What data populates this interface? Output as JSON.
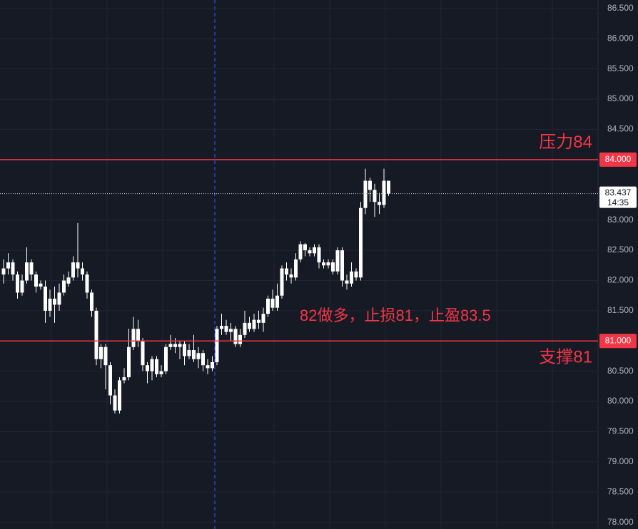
{
  "chart_data": {
    "type": "candlestick",
    "color": "#ffffff",
    "ylim": [
      77.89,
      86.64
    ],
    "yticks": [
      {
        "value": 78,
        "label": "78.000"
      },
      {
        "value": 78.5,
        "label": "78.500"
      },
      {
        "value": 79,
        "label": "79.000"
      },
      {
        "value": 79.5,
        "label": "79.500"
      },
      {
        "value": 80,
        "label": "80.000"
      },
      {
        "value": 80.5,
        "label": "80.500"
      },
      {
        "value": 81.5,
        "label": "81.500"
      },
      {
        "value": 82,
        "label": "82.000"
      },
      {
        "value": 82.5,
        "label": "82.500"
      },
      {
        "value": 83,
        "label": "83.000"
      },
      {
        "value": 84.5,
        "label": "84.500"
      },
      {
        "value": 85,
        "label": "85.000"
      },
      {
        "value": 85.5,
        "label": "85.500"
      },
      {
        "value": 86,
        "label": "86.000"
      },
      {
        "value": 86.5,
        "label": "86.500"
      }
    ],
    "grid": true,
    "open": [
      82.1,
      82.2,
      82.3,
      82.1,
      81.8,
      82.0,
      82.3,
      82.1,
      81.95,
      81.9,
      81.5,
      81.7,
      81.6,
      81.8,
      81.95,
      82.05,
      82.3,
      82.2,
      82.1,
      81.8,
      81.5,
      80.7,
      80.9,
      80.6,
      80.1,
      79.85,
      80.35,
      80.4,
      80.9,
      81.2,
      81.0,
      80.6,
      80.5,
      80.7,
      80.45,
      80.5,
      80.9,
      80.95,
      80.9,
      80.95,
      80.75,
      80.85,
      80.7,
      80.8,
      80.6,
      80.55,
      80.65,
      81.2,
      81.25,
      81.15,
      81.2,
      80.95,
      81.1,
      81.3,
      81.2,
      81.35,
      81.3,
      81.45,
      81.7,
      81.55,
      81.75,
      82.2,
      82.1,
      82.05,
      82.35,
      82.6,
      82.5,
      82.45,
      82.55,
      82.3,
      82.25,
      82.3,
      82.15,
      82.5,
      82.0,
      81.95,
      82.15,
      82.05,
      83.2,
      83.65,
      83.5,
      83.3,
      83.25,
      83.65
    ],
    "high": [
      82.35,
      82.45,
      82.35,
      82.15,
      82.1,
      82.55,
      82.35,
      82.15,
      82.0,
      82.0,
      81.85,
      81.9,
      81.95,
      82.1,
      82.15,
      82.4,
      82.95,
      82.3,
      82.15,
      81.85,
      81.55,
      80.95,
      80.95,
      80.65,
      80.2,
      80.4,
      80.55,
      81.2,
      81.4,
      81.35,
      81.05,
      80.65,
      80.75,
      80.75,
      80.6,
      80.95,
      81.1,
      81.05,
      81.0,
      81.0,
      80.95,
      81.1,
      80.9,
      80.85,
      80.7,
      80.75,
      81.25,
      81.45,
      81.35,
      81.3,
      81.25,
      81.2,
      81.5,
      81.4,
      81.45,
      81.5,
      81.55,
      81.75,
      81.85,
      81.95,
      82.25,
      82.3,
      82.2,
      82.45,
      82.65,
      82.62,
      82.55,
      82.6,
      82.6,
      82.35,
      82.35,
      82.35,
      82.55,
      82.55,
      82.1,
      82.3,
      82.2,
      83.3,
      83.85,
      83.7,
      83.6,
      83.45,
      83.85,
      83.65
    ],
    "low": [
      81.95,
      82.1,
      82.0,
      81.7,
      81.75,
      81.95,
      82.0,
      81.8,
      81.85,
      81.3,
      81.4,
      81.3,
      81.5,
      81.75,
      81.9,
      82.0,
      82.05,
      82.0,
      81.7,
      81.4,
      80.6,
      80.55,
      80.2,
      79.95,
      79.8,
      79.8,
      80.3,
      80.35,
      80.85,
      80.9,
      80.5,
      80.3,
      80.35,
      80.4,
      80.4,
      80.45,
      80.85,
      80.8,
      80.7,
      80.6,
      80.7,
      80.65,
      80.55,
      80.5,
      80.45,
      80.5,
      80.6,
      81.1,
      81.1,
      81.0,
      80.9,
      80.9,
      81.05,
      81.15,
      81.15,
      81.2,
      81.15,
      81.4,
      81.5,
      81.5,
      81.7,
      82.0,
      81.95,
      82.0,
      82.3,
      82.4,
      82.4,
      82.4,
      82.2,
      82.2,
      82.2,
      82.1,
      82.1,
      81.9,
      81.85,
      81.9,
      82.0,
      82.0,
      83.1,
      83.3,
      83.05,
      83.1,
      83.2,
      83.4
    ],
    "close": [
      82.2,
      82.3,
      82.1,
      81.8,
      82.0,
      82.3,
      82.1,
      81.9,
      81.9,
      81.5,
      81.7,
      81.6,
      81.8,
      82.0,
      82.05,
      82.3,
      82.2,
      82.1,
      81.8,
      81.5,
      80.7,
      80.9,
      80.6,
      80.1,
      79.85,
      80.35,
      80.4,
      80.9,
      81.2,
      81.0,
      80.6,
      80.5,
      80.7,
      80.45,
      80.5,
      80.9,
      80.95,
      80.9,
      80.95,
      80.75,
      80.85,
      80.7,
      80.8,
      80.6,
      80.55,
      80.65,
      81.2,
      81.25,
      81.15,
      81.2,
      80.95,
      81.1,
      81.3,
      81.2,
      81.35,
      81.3,
      81.45,
      81.7,
      81.55,
      81.75,
      82.2,
      82.1,
      82.05,
      82.35,
      82.6,
      82.5,
      82.45,
      82.55,
      82.3,
      82.25,
      82.3,
      82.15,
      82.5,
      82.0,
      81.95,
      82.15,
      82.05,
      83.2,
      83.65,
      83.5,
      83.3,
      83.25,
      83.65,
      83.437
    ],
    "levels": [
      {
        "value": 84,
        "label": "84.000",
        "name": "压力84",
        "color": "#f23645"
      },
      {
        "value": 81,
        "label": "81.000",
        "name": "支撑81",
        "color": "#f23645"
      }
    ],
    "annotation": "82做多，止损81，止盈83.5",
    "last": {
      "value": 83.437,
      "label": "83.437",
      "time": "14:35"
    }
  }
}
